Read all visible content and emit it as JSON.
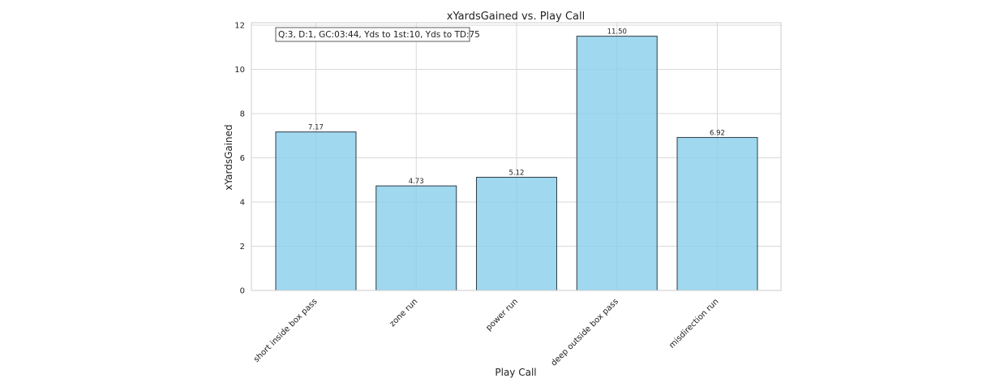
{
  "chart_data": {
    "type": "bar",
    "title": "xYardsGained vs. Play Call",
    "xlabel": "Play Call",
    "ylabel": "xYardsGained",
    "categories": [
      "short inside box pass",
      "zone run",
      "power run",
      "deep outside box pass",
      "misdirection run"
    ],
    "values": [
      7.17,
      4.73,
      5.12,
      11.5,
      6.92
    ],
    "data_labels": [
      "7.17",
      "4.73",
      "5.12",
      "11.50",
      "6.92"
    ],
    "ylim": [
      0,
      12
    ],
    "yticks": [
      0,
      2,
      4,
      6,
      8,
      10,
      12
    ],
    "grid": true,
    "bar_color": "#87CEEB",
    "bar_edge_color": "#2f3b45",
    "annotation": "Q:3, D:1, GC:03:44, Yds to 1st:10, Yds to TD:75"
  }
}
